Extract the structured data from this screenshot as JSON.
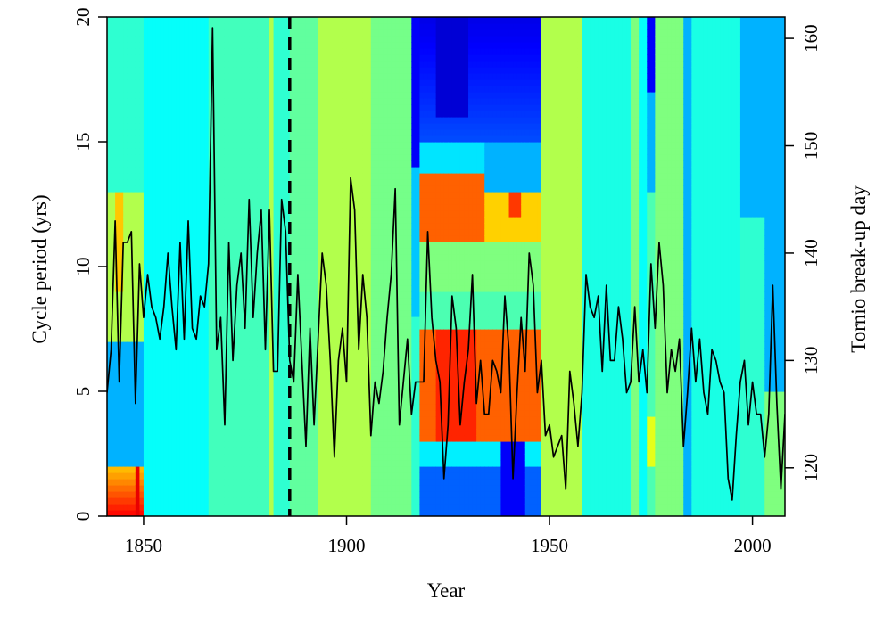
{
  "chart_data": {
    "type": "heatmap",
    "title": "",
    "xlabel": "Year",
    "ylabel": "Cycle period (yrs)",
    "y2label": "Tornio break-up day",
    "xlim": [
      1841,
      2008
    ],
    "ylim": [
      0,
      20
    ],
    "y2lim": [
      115.5,
      162
    ],
    "x_ticks": [
      1850,
      1900,
      1950,
      2000
    ],
    "y_ticks": [
      0,
      5,
      10,
      15,
      20
    ],
    "y2_ticks": [
      120,
      130,
      140,
      150,
      160
    ],
    "colormap": [
      "#00008b",
      "#0000ff",
      "#007fff",
      "#00ffff",
      "#7fff7f",
      "#ffff00",
      "#ff7f00",
      "#ff0000",
      "#8b0000"
    ],
    "reference_line": {
      "x": 1886,
      "style": "dashed"
    },
    "series": [
      {
        "name": "",
        "x_start": 1841,
        "x_step": 1,
        "values": [
          127,
          131,
          143,
          128,
          141,
          141,
          142,
          126,
          139,
          134,
          138,
          135,
          134,
          132,
          135,
          140,
          135,
          131,
          141,
          132,
          143,
          133,
          132,
          136,
          135,
          139,
          161,
          131,
          134,
          124,
          141,
          130,
          137,
          140,
          133,
          145,
          134,
          140,
          144,
          131,
          144,
          129,
          129,
          145,
          142,
          130,
          128,
          138,
          130,
          122,
          133,
          124,
          132,
          140,
          137,
          130,
          121,
          130,
          133,
          128,
          147,
          144,
          131,
          138,
          134,
          123,
          128,
          126,
          129,
          134,
          138,
          146,
          124,
          128,
          132,
          125,
          128,
          128,
          128,
          142,
          134,
          130,
          128,
          119,
          124,
          136,
          133,
          124,
          128,
          131,
          138,
          126,
          130,
          125,
          125,
          130,
          129,
          127,
          136,
          131,
          119,
          127,
          134,
          129,
          140,
          137,
          127,
          130,
          123,
          124,
          121,
          122,
          123,
          118,
          129,
          126,
          122,
          127,
          138,
          135,
          134,
          136,
          129,
          137,
          130,
          130,
          135,
          132,
          127,
          128,
          135,
          128,
          131,
          127,
          139,
          133,
          141,
          137,
          127,
          131,
          129,
          132,
          122,
          127,
          133,
          128,
          132,
          127,
          125,
          131,
          130,
          128,
          127,
          119,
          117,
          123,
          128,
          130,
          124,
          128,
          125,
          125,
          121,
          125,
          137,
          126,
          118,
          125,
          123,
          126,
          135,
          124,
          123,
          120,
          129,
          127,
          133,
          142,
          135,
          127,
          131,
          135,
          128,
          121,
          130,
          117,
          126,
          125,
          126,
          121,
          122
        ]
      }
    ],
    "heatmap": {
      "columns_years": [
        1841,
        1842,
        1843,
        1844,
        1845,
        1846,
        1847,
        1848,
        1849,
        1850,
        1852,
        1855,
        1858,
        1862,
        1866,
        1873,
        1878,
        1881,
        1882,
        1885,
        1886,
        1889,
        1893,
        1900,
        1906,
        1912,
        1915,
        1916,
        1917,
        1918,
        1920,
        1922,
        1924,
        1926,
        1928,
        1930,
        1932,
        1934,
        1936,
        1938,
        1940,
        1942,
        1944,
        1946,
        1948,
        1950,
        1955,
        1958,
        1962,
        1966,
        1969,
        1970,
        1972,
        1974,
        1975,
        1976,
        1978,
        1980,
        1982,
        1983,
        1985,
        1988,
        1991,
        1994,
        1997,
        2000,
        2003,
        2005
      ],
      "notes": "column colors sampled by period band"
    }
  }
}
